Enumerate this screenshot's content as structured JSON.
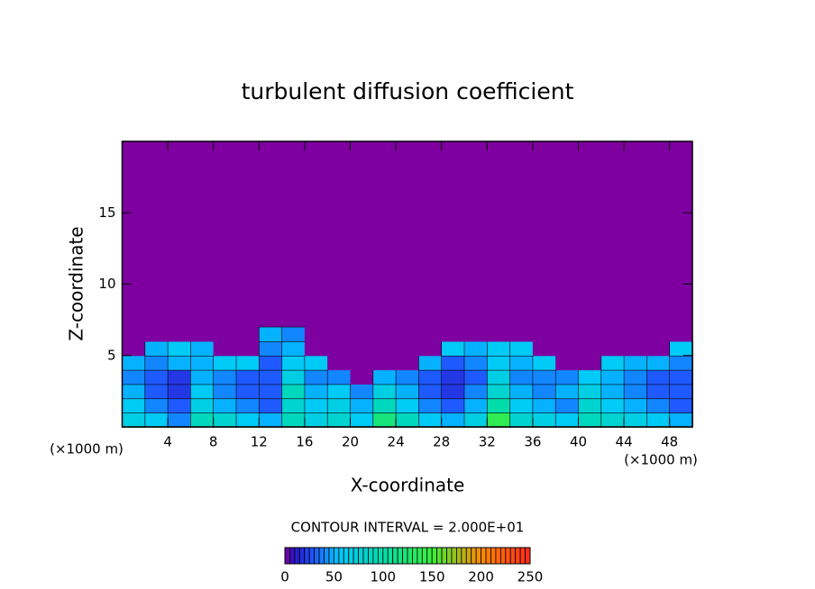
{
  "chart_data": {
    "type": "heatmap",
    "title": "turbulent diffusion coefficient",
    "x_label": "X-coordinate",
    "y_label": "Z-coordinate",
    "x_unit": "(×1000 m)",
    "contour_interval": "CONTOUR INTERVAL = 2.000E+01",
    "x": [
      1,
      3,
      5,
      7,
      9,
      11,
      13,
      15,
      17,
      19,
      21,
      23,
      25,
      27,
      29,
      31,
      33,
      35,
      37,
      39,
      41,
      43,
      45,
      47,
      49
    ],
    "y": [
      0.5,
      1.5,
      2.5,
      3.5,
      4.5,
      5.5,
      6.5
    ],
    "values": [
      [
        70,
        60,
        40,
        90,
        80,
        60,
        50,
        90,
        70,
        80,
        60,
        120,
        90,
        60,
        50,
        70,
        140,
        80,
        70,
        60,
        90,
        80,
        70,
        60,
        50
      ],
      [
        60,
        40,
        30,
        70,
        50,
        40,
        30,
        80,
        60,
        70,
        50,
        90,
        60,
        40,
        30,
        50,
        100,
        60,
        50,
        40,
        80,
        60,
        50,
        40,
        30
      ],
      [
        50,
        30,
        20,
        60,
        40,
        30,
        30,
        90,
        50,
        60,
        40,
        70,
        50,
        30,
        20,
        40,
        80,
        50,
        40,
        50,
        70,
        50,
        40,
        30,
        30
      ],
      [
        40,
        30,
        20,
        50,
        40,
        30,
        30,
        70,
        40,
        40,
        0,
        50,
        40,
        30,
        20,
        30,
        70,
        40,
        40,
        40,
        60,
        50,
        40,
        30,
        30
      ],
      [
        50,
        40,
        50,
        50,
        60,
        60,
        30,
        60,
        60,
        0,
        0,
        0,
        0,
        50,
        30,
        40,
        60,
        50,
        60,
        0,
        0,
        60,
        50,
        50,
        40
      ],
      [
        0,
        50,
        60,
        50,
        0,
        0,
        40,
        50,
        0,
        0,
        0,
        0,
        0,
        0,
        60,
        50,
        60,
        60,
        0,
        0,
        0,
        0,
        0,
        0,
        60
      ],
      [
        0,
        0,
        0,
        0,
        0,
        0,
        50,
        40,
        0,
        0,
        0,
        0,
        0,
        0,
        0,
        0,
        0,
        0,
        0,
        0,
        0,
        0,
        0,
        0,
        0
      ]
    ],
    "xlim": [
      0,
      50
    ],
    "ylim": [
      0,
      20
    ],
    "xticks": [
      4,
      8,
      12,
      16,
      20,
      24,
      28,
      32,
      36,
      40,
      44,
      48
    ],
    "yticks": [
      5,
      10,
      15
    ],
    "clim": [
      0,
      250
    ],
    "cticks": [
      0,
      50,
      100,
      150,
      200,
      250
    ]
  }
}
